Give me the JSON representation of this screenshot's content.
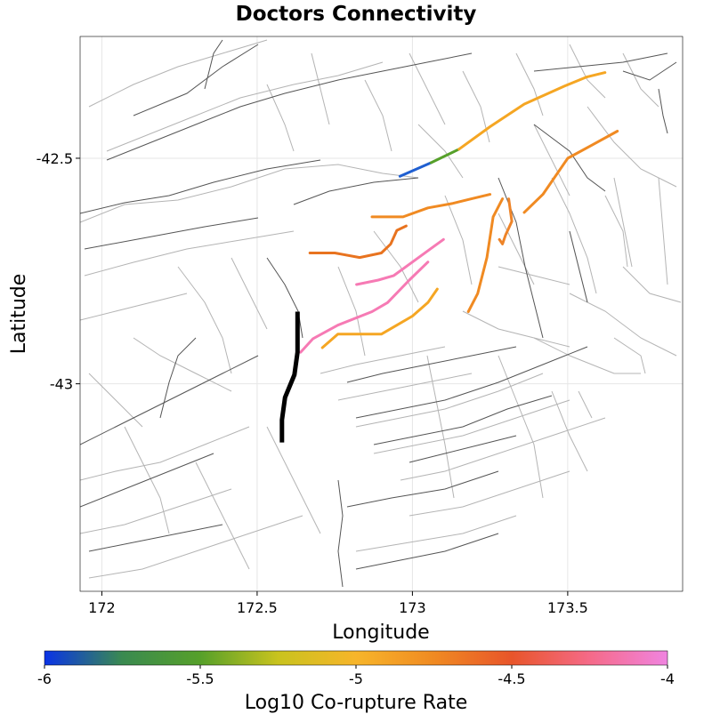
{
  "chart_data": {
    "type": "map",
    "title": "Doctors Connectivity",
    "xlabel": "Longitude",
    "ylabel": "Latitude",
    "xlim": [
      171.93,
      173.87
    ],
    "ylim": [
      -43.46,
      -42.23
    ],
    "x_ticks": [
      {
        "value": 172,
        "label": "172"
      },
      {
        "value": 172.5,
        "label": "172.5"
      },
      {
        "value": 173,
        "label": "173"
      },
      {
        "value": 173.5,
        "label": "173.5"
      }
    ],
    "y_ticks": [
      {
        "value": -42.5,
        "label": "-42.5"
      },
      {
        "value": -43,
        "label": "-43"
      }
    ],
    "grid": true,
    "colorbar": {
      "label": "Log10 Co-rupture Rate",
      "range": [
        -6,
        -4
      ],
      "ticks": [
        {
          "value": -6,
          "label": "-6"
        },
        {
          "value": -5.5,
          "label": "-5.5"
        },
        {
          "value": -5,
          "label": "-5"
        },
        {
          "value": -4.5,
          "label": "-4.5"
        },
        {
          "value": -4,
          "label": "-4"
        }
      ],
      "stops": [
        "#0a33e6",
        "#3a8a50",
        "#56a02a",
        "#c9c31e",
        "#f7b52a",
        "#f08a22",
        "#e8552a",
        "#f56a88",
        "#f084e0"
      ]
    },
    "source_fault": {
      "name": "Doctors",
      "color": "#000000",
      "points": [
        [
          172.63,
          -42.84
        ],
        [
          172.63,
          -42.93
        ],
        [
          172.62,
          -42.98
        ],
        [
          172.59,
          -43.03
        ],
        [
          172.58,
          -43.08
        ],
        [
          172.58,
          -43.13
        ]
      ]
    },
    "ruptures": [
      {
        "log10_rate": -6.0,
        "color": "#1f5fd1",
        "points": [
          [
            172.96,
            -42.54
          ],
          [
            173.06,
            -42.51
          ]
        ]
      },
      {
        "log10_rate": -5.55,
        "color": "#56a02a",
        "points": [
          [
            173.06,
            -42.51
          ],
          [
            173.15,
            -42.48
          ]
        ]
      },
      {
        "log10_rate": -5.05,
        "color": "#f5a623",
        "points": [
          [
            173.15,
            -42.48
          ],
          [
            173.25,
            -42.43
          ],
          [
            173.36,
            -42.38
          ],
          [
            173.49,
            -42.34
          ],
          [
            173.56,
            -42.32
          ],
          [
            173.62,
            -42.31
          ]
        ]
      },
      {
        "log10_rate": -4.72,
        "color": "#f08a22",
        "points": [
          [
            173.36,
            -42.62
          ],
          [
            173.42,
            -42.58
          ],
          [
            173.5,
            -42.5
          ],
          [
            173.58,
            -42.47
          ],
          [
            173.66,
            -42.44
          ]
        ]
      },
      {
        "log10_rate": -4.68,
        "color": "#f08a22",
        "points": [
          [
            173.29,
            -42.59
          ],
          [
            173.26,
            -42.63
          ],
          [
            173.24,
            -42.72
          ],
          [
            173.21,
            -42.8
          ],
          [
            173.18,
            -42.84
          ]
        ]
      },
      {
        "log10_rate": -4.65,
        "color": "#ee8428",
        "points": [
          [
            173.31,
            -42.59
          ],
          [
            173.32,
            -42.64
          ],
          [
            173.3,
            -42.67
          ],
          [
            173.29,
            -42.69
          ],
          [
            173.28,
            -42.68
          ]
        ]
      },
      {
        "log10_rate": -4.7,
        "color": "#f08a22",
        "points": [
          [
            172.87,
            -42.63
          ],
          [
            172.97,
            -42.63
          ],
          [
            173.05,
            -42.61
          ],
          [
            173.13,
            -42.6
          ],
          [
            173.19,
            -42.59
          ],
          [
            173.25,
            -42.58
          ]
        ]
      },
      {
        "log10_rate": -4.62,
        "color": "#e8731f",
        "points": [
          [
            172.67,
            -42.71
          ],
          [
            172.75,
            -42.71
          ],
          [
            172.83,
            -42.72
          ],
          [
            172.9,
            -42.71
          ],
          [
            172.93,
            -42.69
          ],
          [
            172.95,
            -42.66
          ],
          [
            172.98,
            -42.65
          ]
        ]
      },
      {
        "log10_rate": -4.1,
        "color": "#f67ab4",
        "points": [
          [
            172.82,
            -42.78
          ],
          [
            172.89,
            -42.77
          ],
          [
            172.94,
            -42.76
          ],
          [
            173.0,
            -42.73
          ],
          [
            173.06,
            -42.7
          ],
          [
            173.1,
            -42.68
          ]
        ]
      },
      {
        "log10_rate": -4.15,
        "color": "#f67ab4",
        "points": [
          [
            172.64,
            -42.93
          ],
          [
            172.68,
            -42.9
          ],
          [
            172.76,
            -42.87
          ],
          [
            172.87,
            -42.84
          ],
          [
            172.92,
            -42.82
          ],
          [
            172.99,
            -42.77
          ],
          [
            173.05,
            -42.73
          ]
        ]
      },
      {
        "log10_rate": -5.0,
        "color": "#f5a623",
        "points": [
          [
            172.71,
            -42.92
          ],
          [
            172.76,
            -42.89
          ],
          [
            172.84,
            -42.89
          ],
          [
            172.9,
            -42.89
          ],
          [
            172.95,
            -42.87
          ],
          [
            173.0,
            -42.85
          ],
          [
            173.05,
            -42.82
          ],
          [
            173.08,
            -42.79
          ]
        ]
      }
    ]
  }
}
